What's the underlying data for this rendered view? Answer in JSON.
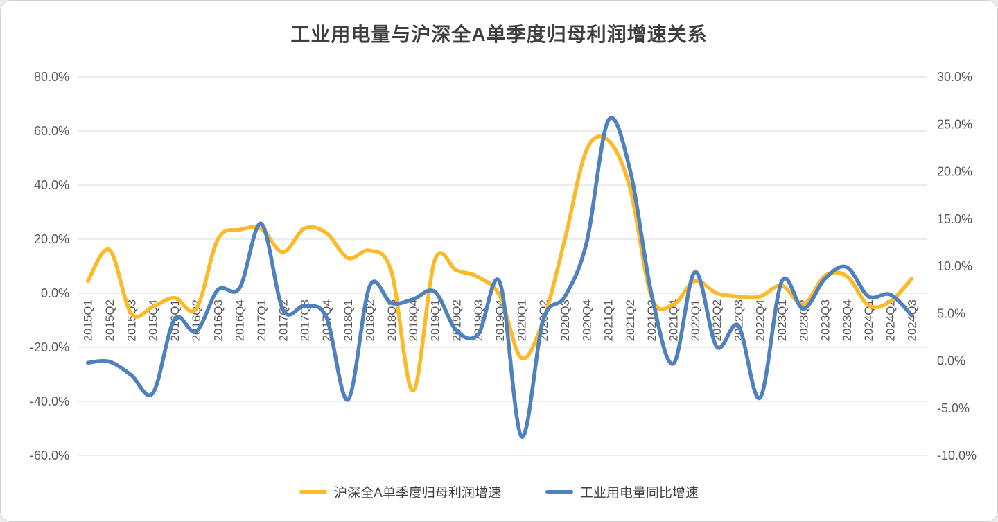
{
  "title": "工业用电量与沪深全A单季度归母利润增速关系",
  "chart_data": {
    "type": "line",
    "smoothed": true,
    "grid": "horizontal",
    "legend_position": "bottom",
    "categories": [
      "2015Q1",
      "2015Q2",
      "2015Q3",
      "2015Q4",
      "2016Q1",
      "2016Q2",
      "2016Q3",
      "2016Q4",
      "2017Q1",
      "2017Q2",
      "2017Q3",
      "2017Q4",
      "2018Q1",
      "2018Q2",
      "2018Q3",
      "2018Q4",
      "2019Q1",
      "2019Q2",
      "2019Q3",
      "2019Q4",
      "2020Q1",
      "2020Q2",
      "2020Q3",
      "2020Q4",
      "2021Q1",
      "2021Q2",
      "2021Q3",
      "2021Q4",
      "2022Q1",
      "2022Q2",
      "2022Q3",
      "2022Q4",
      "2023Q1",
      "2023Q2",
      "2023Q3",
      "2023Q4",
      "2024Q1",
      "2024Q2",
      "2024Q3"
    ],
    "series": [
      {
        "name": "沪深全A单季度归母利润增速",
        "axis": "left",
        "color": "#FBBA2A",
        "unit": "%",
        "values": [
          4.5,
          16,
          -7.5,
          -5,
          -1.7,
          -5.8,
          20,
          23.5,
          23.8,
          15.2,
          24,
          22.3,
          13,
          15.8,
          8,
          -36,
          12.2,
          8.5,
          6,
          -1,
          -24,
          -10,
          20,
          53,
          56.5,
          39,
          -1.5,
          -4.2,
          4.5,
          0,
          -1.2,
          -1.2,
          2.8,
          -4.1,
          6.5,
          6.3,
          -4.5,
          -3.1,
          5.5
        ]
      },
      {
        "name": "工业用电量同比增速",
        "axis": "right",
        "color": "#4E81BD",
        "unit": "%",
        "values": [
          -0.2,
          -0.1,
          -1.5,
          -3.4,
          4.4,
          3.1,
          7.5,
          7.7,
          14.5,
          5.4,
          5.8,
          4.6,
          -4.1,
          7.9,
          6.1,
          6.5,
          7.3,
          3.2,
          2.8,
          8.3,
          -8,
          4.3,
          6.8,
          12.5,
          25.4,
          20.2,
          7,
          -0.3,
          9.4,
          1.5,
          3.7,
          -3.9,
          8.4,
          5.5,
          8.7,
          9.9,
          6.8,
          7,
          4.8
        ]
      }
    ],
    "left_axis": {
      "min": -60,
      "max": 80,
      "tick_labels": [
        "80.0%",
        "60.0%",
        "40.0%",
        "20.0%",
        "0.0%",
        "-20.0%",
        "-40.0%",
        "-60.0%"
      ]
    },
    "right_axis": {
      "min": -10,
      "max": 30,
      "tick_labels": [
        "30.0%",
        "25.0%",
        "20.0%",
        "15.0%",
        "10.0%",
        "5.0%",
        "0.0%",
        "-5.0%",
        "-10.0%"
      ]
    }
  },
  "legend": {
    "items": [
      {
        "label": "沪深全A单季度归母利润增速",
        "color": "#FBBA2A"
      },
      {
        "label": "工业用电量同比增速",
        "color": "#4E81BD"
      }
    ]
  },
  "style": {
    "grid_color": "#D9D9D9",
    "tick_color": "#595959",
    "x_label_color": "#595959",
    "title_color": "#3F3F3F"
  }
}
